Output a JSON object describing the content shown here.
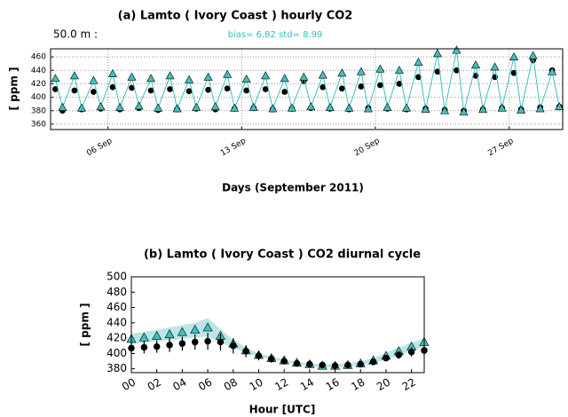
{
  "chart_data": [
    {
      "type": "line",
      "title": "(a) Lamto  ( Ivory Coast )  hourly CO2",
      "annotations": [
        {
          "text": "50.0 m :",
          "color": "#000000"
        },
        {
          "text": "bias=  6.82 std= 8.99",
          "color": "#2bbfbf"
        }
      ],
      "xlabel": "Days (September 2011)",
      "ylabel": "[ ppm ]",
      "x": [
        3.25,
        3.625,
        4.25,
        4.625,
        5.25,
        5.625,
        6.25,
        6.625,
        7.25,
        7.625,
        8.25,
        8.625,
        9.25,
        9.625,
        10.25,
        10.625,
        11.25,
        11.625,
        12.25,
        12.625,
        13.25,
        13.625,
        14.25,
        14.625,
        15.25,
        15.625,
        16.25,
        16.625,
        17.25,
        17.625,
        18.25,
        18.625,
        19.25,
        19.625,
        20.25,
        20.625,
        21.25,
        21.625,
        22.25,
        22.625,
        23.25,
        23.625,
        24.25,
        24.625,
        25.25,
        25.625,
        26.25,
        26.625,
        27.25,
        27.625,
        28.25,
        28.625,
        29.25,
        29.625
      ],
      "series": [
        {
          "color": "#000000",
          "marker": "circle",
          "line": false,
          "values": [
            412,
            380,
            410,
            382,
            408,
            383,
            415,
            382,
            414,
            384,
            410,
            381,
            412,
            382,
            409,
            383,
            411,
            382,
            413,
            383,
            410,
            384,
            412,
            382,
            408,
            383,
            424,
            384,
            415,
            383,
            413,
            382,
            416,
            384,
            418,
            383,
            420,
            382,
            430,
            383,
            438,
            381,
            440,
            380,
            432,
            382,
            430,
            384,
            436,
            382,
            455,
            385,
            440,
            386
          ]
        },
        {
          "color": "#3fc0c0",
          "marker": "triangle",
          "line": true,
          "values": [
            428,
            385,
            432,
            384,
            425,
            386,
            435,
            385,
            430,
            387,
            428,
            384,
            432,
            383,
            426,
            385,
            430,
            386,
            434,
            384,
            427,
            385,
            432,
            383,
            428,
            384,
            430,
            386,
            433,
            385,
            436,
            384,
            438,
            383,
            442,
            385,
            440,
            384,
            452,
            382,
            465,
            380,
            470,
            378,
            448,
            382,
            445,
            384,
            460,
            381,
            462,
            383,
            438,
            386
          ]
        }
      ],
      "xlim": [
        3,
        29.8
      ],
      "xticks": [
        {
          "value": 6,
          "label": "06 Sep"
        },
        {
          "value": 13,
          "label": "13 Sep"
        },
        {
          "value": 20,
          "label": "20 Sep"
        },
        {
          "value": 27,
          "label": "27 Sep"
        }
      ],
      "ylim": [
        352,
        472
      ],
      "yticks": [
        360,
        380,
        400,
        420,
        440,
        460
      ],
      "grid": true
    },
    {
      "type": "line",
      "title": "(b) Lamto  ( Ivory Coast )   CO2  diurnal cycle",
      "xlabel": "Hour  [UTC]",
      "ylabel": "[ ppm ]",
      "x": [
        0,
        1,
        2,
        3,
        4,
        5,
        6,
        7,
        8,
        9,
        10,
        11,
        12,
        13,
        14,
        15,
        16,
        17,
        18,
        19,
        20,
        21,
        22,
        23
      ],
      "band_color": "#9fdcdc",
      "band_upper": [
        426,
        428,
        431,
        434,
        437,
        440,
        446,
        432,
        418,
        408,
        400,
        396,
        392,
        389,
        387,
        386,
        386,
        387,
        390,
        394,
        401,
        408,
        414,
        420
      ],
      "band_lower": [
        412,
        414,
        416,
        417,
        419,
        421,
        422,
        414,
        408,
        400,
        396,
        392,
        389,
        386,
        384,
        382,
        382,
        383,
        384,
        387,
        392,
        397,
        403,
        409
      ],
      "series": [
        {
          "color": "#3fc0c0",
          "marker": "triangle",
          "line": false,
          "values": [
            419,
            421,
            423,
            425,
            428,
            431,
            434,
            423,
            413,
            404,
            398,
            394,
            391,
            388,
            386,
            384,
            384,
            385,
            387,
            391,
            397,
            403,
            409,
            415
          ]
        },
        {
          "color": "#000000",
          "marker": "circle",
          "line": false,
          "values": [
            407,
            408,
            409,
            411,
            413,
            415,
            416,
            415,
            410,
            403,
            397,
            393,
            390,
            387,
            386,
            385,
            384,
            385,
            386,
            389,
            394,
            398,
            402,
            404
          ],
          "errors": [
            8,
            8,
            8,
            9,
            9,
            10,
            11,
            11,
            10,
            8,
            6,
            5,
            4,
            3,
            3,
            3,
            3,
            3,
            3,
            3,
            4,
            5,
            6,
            6
          ]
        }
      ],
      "xlim": [
        0,
        23
      ],
      "xticks": [
        {
          "value": 0,
          "label": "00"
        },
        {
          "value": 2,
          "label": "02"
        },
        {
          "value": 4,
          "label": "04"
        },
        {
          "value": 6,
          "label": "06"
        },
        {
          "value": 8,
          "label": "08"
        },
        10,
        12,
        14,
        16,
        18,
        20,
        22
      ],
      "ylim": [
        375,
        500
      ],
      "yticks": [
        380,
        400,
        420,
        440,
        460,
        480,
        500
      ],
      "grid": false
    }
  ]
}
